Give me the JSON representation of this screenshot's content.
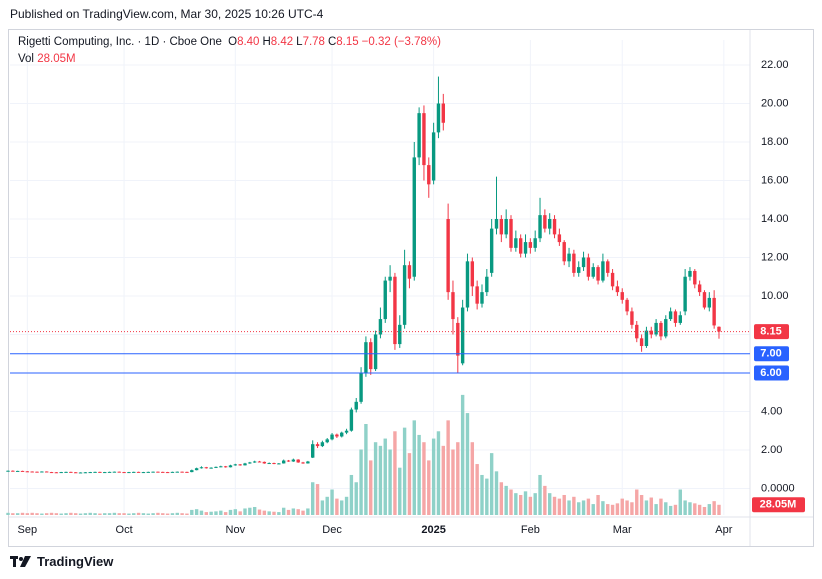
{
  "chart_data": {
    "type": "candlestick",
    "publisher": "Published on TradingView.com, Mar 30, 2025 10:26 UTC-4",
    "title": "Rigetti Computing, Inc. · 1D · Cboe One",
    "ohlc": [
      {
        "key": "O",
        "value": "8.40"
      },
      {
        "key": "H",
        "value": "8.42"
      },
      {
        "key": "L",
        "value": "7.78"
      },
      {
        "key": "C",
        "value": "8.15"
      }
    ],
    "change": "−0.32 (−3.78%)",
    "volume_title": "Vol",
    "volume_label": "28.05M",
    "brand": "TradingView",
    "up_color": "#089981",
    "down_color": "#f23645",
    "up_volume_color": "#8fd1c8",
    "down_volume_color": "#f5a6a6",
    "ylim": [
      -1.38,
      23.3
    ],
    "yticks": [
      {
        "value": 0,
        "label": "0.0000"
      },
      {
        "value": 2,
        "label": "2.00"
      },
      {
        "value": 4,
        "label": "4.00"
      },
      {
        "value": 6,
        "label": "6.00"
      },
      {
        "value": 8,
        "label": "8.00"
      },
      {
        "value": 10,
        "label": "10.00"
      },
      {
        "value": 12,
        "label": "12.00"
      },
      {
        "value": 14,
        "label": "14.00"
      },
      {
        "value": 16,
        "label": "16.00"
      },
      {
        "value": 18,
        "label": "18.00"
      },
      {
        "value": 20,
        "label": "20.00"
      },
      {
        "value": 22,
        "label": "22.00"
      }
    ],
    "y2lim": [
      0,
      1305
    ],
    "xlim": [
      0,
      153
    ],
    "xticks": [
      {
        "value": 4,
        "label": "Sep"
      },
      {
        "value": 24,
        "label": "Oct"
      },
      {
        "value": 47,
        "label": "Nov"
      },
      {
        "value": 67,
        "label": "Dec"
      },
      {
        "value": 88,
        "label": "2025"
      },
      {
        "value": 108,
        "label": "Feb"
      },
      {
        "value": 127,
        "label": "Mar"
      },
      {
        "value": 148,
        "label": "Apr"
      }
    ],
    "grid": true,
    "hlines": [
      {
        "value": 7,
        "label": "7.00",
        "color": "#2962ff"
      },
      {
        "value": 6,
        "label": "6.00",
        "color": "#2962ff"
      }
    ],
    "last_price": {
      "value": 8.15,
      "label": "8.15",
      "color": "#f23645"
    },
    "open": [
      0.91,
      0.92,
      0.9,
      0.91,
      0.89,
      0.88,
      0.87,
      0.86,
      0.88,
      0.85,
      0.84,
      0.83,
      0.85,
      0.86,
      0.84,
      0.82,
      0.83,
      0.84,
      0.85,
      0.86,
      0.84,
      0.85,
      0.86,
      0.87,
      0.85,
      0.84,
      0.85,
      0.86,
      0.84,
      0.85,
      0.86,
      0.87,
      0.86,
      0.85,
      0.84,
      0.86,
      0.87,
      0.86,
      0.85,
      0.95,
      1.05,
      1.1,
      1.05,
      1.08,
      1.12,
      1.15,
      1.1,
      1.2,
      1.25,
      1.2,
      1.3,
      1.35,
      1.4,
      1.38,
      1.3,
      1.32,
      1.28,
      1.3,
      1.45,
      1.4,
      1.5,
      1.35,
      1.3,
      1.6,
      2.3,
      2.2,
      2.4,
      2.55,
      2.8,
      2.7,
      2.9,
      3.0,
      4.1,
      4.5,
      6.0,
      7.6,
      6.2,
      8.0,
      8.8,
      10.8,
      11.0,
      7.5,
      8.5,
      11.6,
      11.0,
      17.2,
      19.5,
      16.8,
      16.0,
      18.5,
      20.0,
      14.0,
      10.2,
      8.6,
      6.5,
      9.4,
      11.8,
      10.5,
      9.6,
      10.2,
      11.2,
      13.5,
      14.0,
      13.2,
      14.0,
      12.5,
      13.0,
      12.2,
      12.8,
      12.5,
      13.0,
      14.2,
      13.5,
      14.0,
      13.2,
      12.8,
      11.8,
      12.2,
      11.2,
      11.5,
      12.0,
      11.0,
      11.5,
      10.8,
      11.8,
      11.2,
      10.5,
      10.2,
      9.8,
      9.2,
      8.5,
      7.8,
      7.4,
      8.2,
      8.0,
      8.6,
      7.9,
      8.8,
      9.2,
      8.6,
      9.2,
      11.0,
      11.3,
      10.6,
      10.2,
      9.4,
      9.9,
      8.4
    ],
    "high": [
      0.93,
      0.94,
      0.92,
      0.92,
      0.9,
      0.89,
      0.88,
      0.89,
      0.89,
      0.86,
      0.85,
      0.86,
      0.87,
      0.87,
      0.85,
      0.84,
      0.85,
      0.86,
      0.87,
      0.87,
      0.86,
      0.87,
      0.88,
      0.88,
      0.86,
      0.86,
      0.87,
      0.87,
      0.86,
      0.87,
      0.88,
      0.88,
      0.87,
      0.86,
      0.87,
      0.88,
      0.88,
      0.87,
      0.98,
      1.08,
      1.15,
      1.12,
      1.1,
      1.14,
      1.18,
      1.17,
      1.23,
      1.28,
      1.27,
      1.33,
      1.38,
      1.44,
      1.43,
      1.4,
      1.35,
      1.34,
      1.32,
      1.5,
      1.48,
      1.55,
      1.52,
      1.38,
      1.43,
      2.5,
      2.4,
      2.48,
      2.62,
      2.88,
      2.85,
      2.95,
      3.1,
      4.2,
      4.7,
      6.3,
      7.9,
      7.8,
      8.2,
      9.4,
      11.0,
      11.6,
      11.2,
      9.0,
      12.4,
      11.8,
      18.0,
      19.8,
      19.9,
      17.2,
      19.0,
      21.4,
      20.5,
      14.8,
      10.8,
      8.9,
      9.8,
      12.2,
      12.0,
      10.8,
      10.6,
      11.4,
      14.0,
      16.2,
      14.2,
      14.5,
      14.2,
      13.4,
      13.2,
      13.2,
      13.0,
      13.4,
      15.1,
      14.5,
      14.3,
      14.2,
      13.5,
      12.9,
      12.5,
      12.4,
      11.8,
      12.3,
      12.2,
      11.7,
      11.6,
      12.2,
      11.9,
      11.4,
      10.8,
      10.4,
      9.9,
      9.4,
      8.7,
      8.0,
      8.4,
      8.4,
      8.8,
      8.7,
      9.0,
      9.4,
      9.3,
      9.2,
      11.4,
      11.5,
      11.4,
      10.8,
      10.3,
      10.2,
      10.3,
      8.42
    ],
    "low": [
      0.89,
      0.89,
      0.88,
      0.88,
      0.87,
      0.86,
      0.85,
      0.85,
      0.84,
      0.83,
      0.82,
      0.82,
      0.84,
      0.83,
      0.81,
      0.81,
      0.82,
      0.83,
      0.84,
      0.83,
      0.83,
      0.84,
      0.85,
      0.84,
      0.83,
      0.83,
      0.84,
      0.83,
      0.83,
      0.84,
      0.85,
      0.85,
      0.84,
      0.83,
      0.83,
      0.85,
      0.85,
      0.84,
      0.84,
      0.94,
      1.03,
      1.03,
      1.03,
      1.06,
      1.1,
      1.08,
      1.09,
      1.18,
      1.18,
      1.19,
      1.28,
      1.33,
      1.35,
      1.28,
      1.28,
      1.26,
      1.26,
      1.29,
      1.38,
      1.38,
      1.33,
      1.28,
      1.29,
      1.58,
      2.1,
      2.15,
      2.35,
      2.5,
      2.62,
      2.65,
      2.82,
      2.95,
      3.95,
      4.4,
      5.8,
      5.9,
      6.1,
      7.8,
      8.6,
      10.2,
      7.2,
      7.3,
      8.3,
      10.4,
      10.8,
      16.8,
      16.0,
      15.1,
      15.8,
      18.2,
      18.6,
      9.8,
      8.0,
      6.0,
      6.4,
      9.2,
      10.0,
      9.3,
      9.4,
      10.0,
      11.0,
      13.2,
      12.8,
      13.0,
      12.3,
      12.3,
      12.0,
      12.0,
      12.2,
      12.3,
      12.8,
      13.3,
      13.2,
      13.0,
      12.6,
      11.6,
      11.5,
      11.0,
      11.0,
      11.3,
      10.8,
      10.9,
      10.6,
      10.7,
      11.0,
      10.3,
      10.0,
      9.6,
      9.0,
      8.3,
      7.6,
      7.1,
      7.3,
      7.8,
      7.9,
      7.7,
      7.8,
      8.7,
      8.4,
      8.5,
      9.0,
      10.8,
      10.4,
      10.0,
      9.3,
      9.2,
      8.3,
      7.78
    ],
    "close": [
      0.92,
      0.9,
      0.91,
      0.89,
      0.88,
      0.87,
      0.86,
      0.88,
      0.85,
      0.84,
      0.83,
      0.85,
      0.86,
      0.84,
      0.82,
      0.83,
      0.84,
      0.85,
      0.86,
      0.84,
      0.85,
      0.86,
      0.87,
      0.85,
      0.84,
      0.85,
      0.86,
      0.84,
      0.85,
      0.86,
      0.87,
      0.86,
      0.85,
      0.84,
      0.86,
      0.87,
      0.86,
      0.85,
      0.95,
      1.05,
      1.1,
      1.05,
      1.08,
      1.12,
      1.15,
      1.1,
      1.2,
      1.25,
      1.2,
      1.3,
      1.35,
      1.4,
      1.38,
      1.3,
      1.32,
      1.28,
      1.3,
      1.45,
      1.4,
      1.5,
      1.35,
      1.3,
      1.4,
      2.3,
      2.2,
      2.4,
      2.55,
      2.8,
      2.7,
      2.9,
      3.0,
      4.1,
      4.5,
      6.0,
      7.6,
      6.2,
      8.0,
      8.8,
      10.8,
      11.0,
      7.5,
      8.5,
      11.6,
      10.9,
      17.2,
      19.5,
      16.8,
      15.8,
      18.5,
      20.0,
      19.0,
      10.2,
      8.8,
      6.9,
      9.4,
      11.8,
      10.5,
      9.6,
      10.2,
      11.0,
      13.5,
      14.0,
      13.2,
      14.0,
      12.5,
      13.0,
      12.2,
      12.8,
      12.5,
      13.0,
      14.2,
      13.5,
      14.0,
      13.2,
      12.8,
      11.8,
      12.2,
      11.2,
      11.5,
      12.0,
      11.0,
      11.5,
      10.8,
      11.8,
      11.2,
      10.5,
      10.2,
      9.8,
      9.2,
      8.5,
      7.8,
      7.4,
      8.2,
      8.0,
      8.6,
      7.9,
      8.8,
      9.2,
      8.6,
      9.0,
      11.0,
      11.3,
      10.6,
      10.2,
      9.4,
      9.9,
      8.47,
      8.15
    ],
    "volume": [
      6,
      5,
      5,
      6,
      5,
      6,
      5,
      4,
      5,
      6,
      5,
      4,
      5,
      6,
      5,
      4,
      5,
      6,
      5,
      4,
      5,
      5,
      6,
      5,
      5,
      4,
      5,
      6,
      5,
      4,
      5,
      6,
      5,
      4,
      5,
      6,
      5,
      4,
      14,
      16,
      12,
      8,
      9,
      10,
      12,
      8,
      14,
      16,
      10,
      18,
      20,
      22,
      15,
      12,
      10,
      9,
      8,
      20,
      14,
      18,
      16,
      12,
      18,
      90,
      85,
      40,
      50,
      70,
      45,
      40,
      50,
      110,
      90,
      180,
      250,
      150,
      200,
      190,
      210,
      180,
      230,
      130,
      240,
      170,
      260,
      220,
      200,
      150,
      210,
      230,
      190,
      260,
      180,
      200,
      330,
      280,
      200,
      140,
      110,
      100,
      170,
      120,
      90,
      80,
      70,
      60,
      55,
      65,
      50,
      60,
      110,
      80,
      60,
      50,
      45,
      55,
      40,
      50,
      35,
      40,
      45,
      30,
      55,
      38,
      30,
      28,
      32,
      45,
      40,
      35,
      70,
      55,
      40,
      48,
      30,
      45,
      35,
      25,
      28,
      70,
      40,
      35,
      32,
      28,
      22,
      30,
      38,
      28.05
    ]
  }
}
